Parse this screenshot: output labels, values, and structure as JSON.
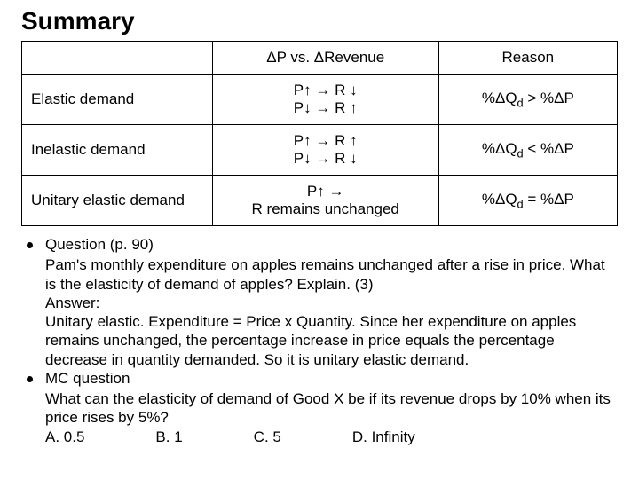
{
  "title": "Summary",
  "table": {
    "headers": {
      "h1": "",
      "h2": "ΔP vs. ΔRevenue",
      "h3": "Reason"
    },
    "rows": [
      {
        "label": "Elastic demand",
        "relation_line1": "P↑ → R ↓",
        "relation_line2": "P↓ → R ↑",
        "reason_prefix": "%ΔQ",
        "reason_sub": "d",
        "reason_suffix": " > %ΔP"
      },
      {
        "label": "Inelastic demand",
        "relation_line1": "P↑ → R ↑",
        "relation_line2": "P↓ → R ↓",
        "reason_prefix": "%ΔQ",
        "reason_sub": "d",
        "reason_suffix": " < %ΔP"
      },
      {
        "label": "Unitary elastic demand",
        "relation_line1": "P↑ →",
        "relation_line2": "R remains unchanged",
        "reason_prefix": "%ΔQ",
        "reason_sub": "d",
        "reason_suffix": " = %ΔP"
      }
    ]
  },
  "q1": {
    "heading": "Question (p. 90)",
    "body1": "Pam's monthly expenditure on apples remains unchanged after a rise in price. What is the elasticity of demand of apples? Explain. (3)",
    "answer_label": "Answer:",
    "answer_body": "Unitary elastic. Expenditure = Price x Quantity. Since her expenditure on apples remains unchanged, the percentage increase in price equals the percentage decrease in quantity demanded. So it is unitary elastic demand."
  },
  "q2": {
    "heading": "MC question",
    "body": "What can the elasticity of demand of Good X be if its revenue drops by 10% when its price rises by 5%?",
    "opts": {
      "a": "A. 0.5",
      "b": "B. 1",
      "c": "C. 5",
      "d": "D. Infinity"
    }
  }
}
